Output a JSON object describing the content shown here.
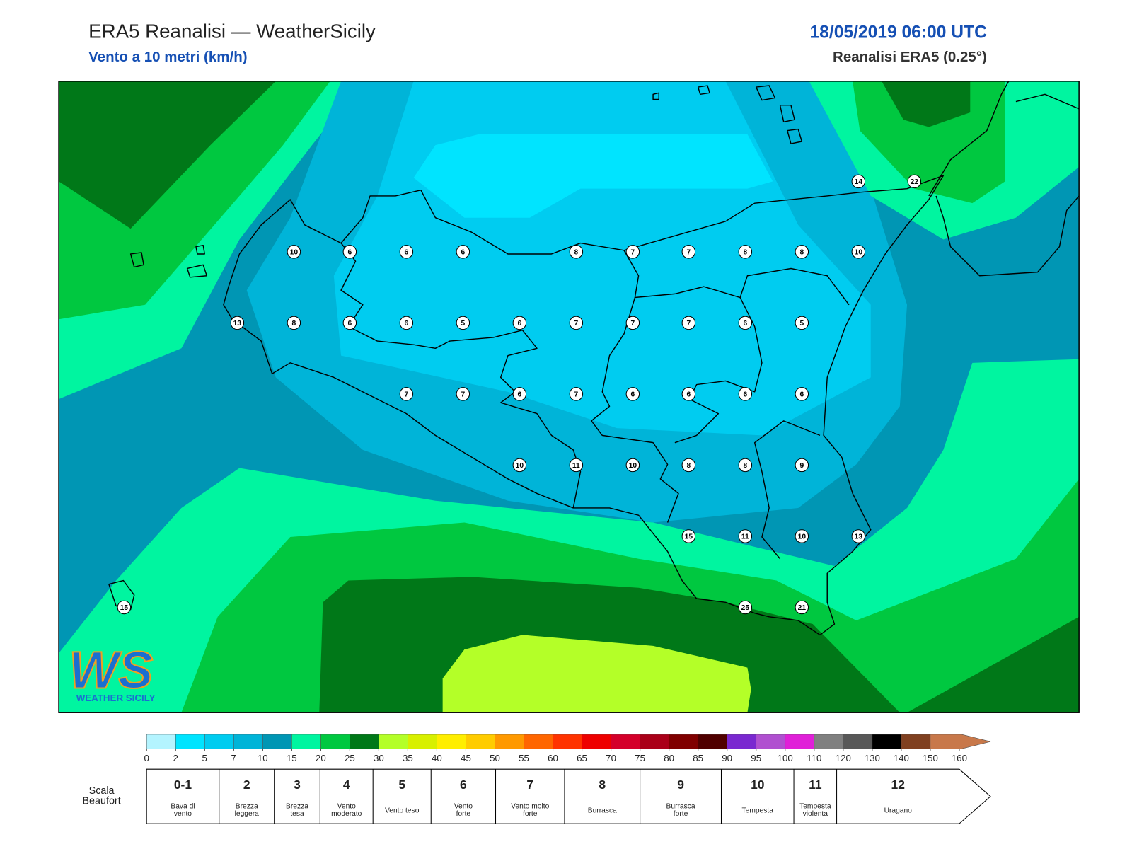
{
  "header": {
    "title": "ERA5 Reanalisi — WeatherSicily",
    "subtitle": "Vento a 10 metri (km/h)",
    "datetime": "18/05/2019 06:00 UTC",
    "source": "Reanalisi ERA5 (0.25°)"
  },
  "stations": [
    14,
    22,
    10,
    6,
    6,
    6,
    8,
    7,
    7,
    8,
    8,
    10,
    13,
    8,
    6,
    6,
    5,
    6,
    7,
    7,
    7,
    6,
    5,
    7,
    7,
    6,
    7,
    6,
    6,
    6,
    6,
    10,
    11,
    10,
    8,
    8,
    9,
    15,
    11,
    10,
    13,
    15,
    25,
    21
  ],
  "colorbar": {
    "ticks": [
      0,
      2,
      5,
      7,
      10,
      15,
      20,
      25,
      30,
      35,
      40,
      45,
      50,
      55,
      60,
      65,
      70,
      75,
      80,
      85,
      90,
      95,
      100,
      110,
      120,
      130,
      140,
      150,
      160
    ],
    "colors": [
      "#b4f4ff",
      "#00e4ff",
      "#00ccf0",
      "#00b4d8",
      "#0096b4",
      "#00f5a0",
      "#00c840",
      "#007818",
      "#b4ff28",
      "#d8f000",
      "#ffee00",
      "#ffcc00",
      "#ff9900",
      "#ff6600",
      "#ff3300",
      "#ee0000",
      "#d4002a",
      "#aa0018",
      "#800000",
      "#500000",
      "#7a28d0",
      "#b050d0",
      "#e020d8",
      "#808080",
      "#585858",
      "#000000",
      "#804020",
      "#c8784a"
    ]
  },
  "beaufort": {
    "label": [
      "Scala",
      "Beaufort"
    ],
    "levels": [
      {
        "force": "0-1",
        "description": [
          "Bava di",
          "vento"
        ]
      },
      {
        "force": "2",
        "description": [
          "Brezza",
          "leggera"
        ]
      },
      {
        "force": "3",
        "description": [
          "Brezza",
          "tesa"
        ]
      },
      {
        "force": "4",
        "description": [
          "Vento",
          "moderato"
        ]
      },
      {
        "force": "5",
        "description": [
          "Vento teso"
        ]
      },
      {
        "force": "6",
        "description": [
          "Vento",
          "forte"
        ]
      },
      {
        "force": "7",
        "description": [
          "Vento molto",
          "forte"
        ]
      },
      {
        "force": "8",
        "description": [
          "Burrasca"
        ]
      },
      {
        "force": "9",
        "description": [
          "Burrasca",
          "forte"
        ]
      },
      {
        "force": "10",
        "description": [
          "Tempesta"
        ]
      },
      {
        "force": "11",
        "description": [
          "Tempesta",
          "violenta"
        ]
      },
      {
        "force": "12",
        "description": [
          "Uragano"
        ]
      }
    ]
  },
  "logo": {
    "mark": "WS",
    "name": "WEATHER SICILY"
  }
}
